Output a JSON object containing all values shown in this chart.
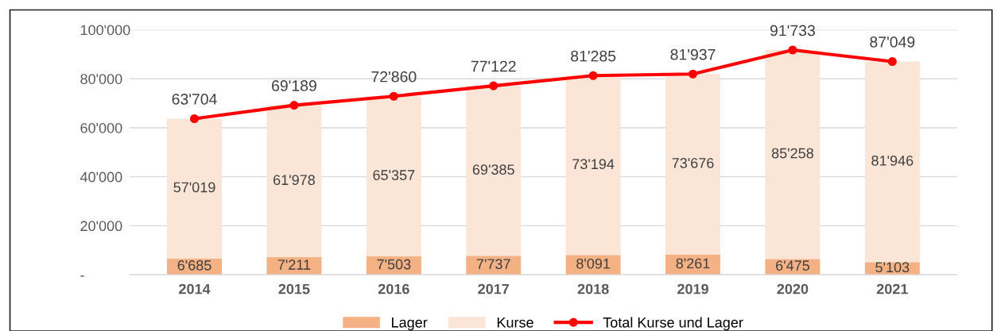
{
  "chart_data": {
    "type": "bar",
    "stacked": true,
    "categories": [
      "2014",
      "2015",
      "2016",
      "2017",
      "2018",
      "2019",
      "2020",
      "2021"
    ],
    "series": [
      {
        "name": "Lager",
        "color": "#f4b183",
        "values": [
          6685,
          7211,
          7503,
          7737,
          8091,
          8261,
          6475,
          5103
        ],
        "value_labels": [
          "6'685",
          "7'211",
          "7'503",
          "7'737",
          "8'091",
          "8'261",
          "6'475",
          "5'103"
        ]
      },
      {
        "name": "Kurse",
        "color": "#fbe5d6",
        "values": [
          57019,
          61978,
          65357,
          69385,
          73194,
          73676,
          85258,
          81946
        ],
        "value_labels": [
          "57'019",
          "61'978",
          "65'357",
          "69'385",
          "73'194",
          "73'676",
          "85'258",
          "81'946"
        ]
      },
      {
        "name": "Total Kurse und Lager",
        "type": "line",
        "color": "#ff0000",
        "marker": "circle",
        "line_style": "solid",
        "values": [
          63704,
          69189,
          72860,
          77122,
          81285,
          81937,
          91733,
          87049
        ],
        "value_labels": [
          "63'704",
          "69'189",
          "72'860",
          "77'122",
          "81'285",
          "81'937",
          "91'733",
          "87'049"
        ]
      }
    ],
    "ylim": [
      0,
      100000
    ],
    "yticks": [
      {
        "value": 0,
        "label": "-"
      },
      {
        "value": 20000,
        "label": "20'000"
      },
      {
        "value": 40000,
        "label": "40'000"
      },
      {
        "value": 60000,
        "label": "60'000"
      },
      {
        "value": 80000,
        "label": "80'000"
      },
      {
        "value": 100000,
        "label": "100'000"
      }
    ],
    "grid": "y",
    "legend": "bottom"
  }
}
